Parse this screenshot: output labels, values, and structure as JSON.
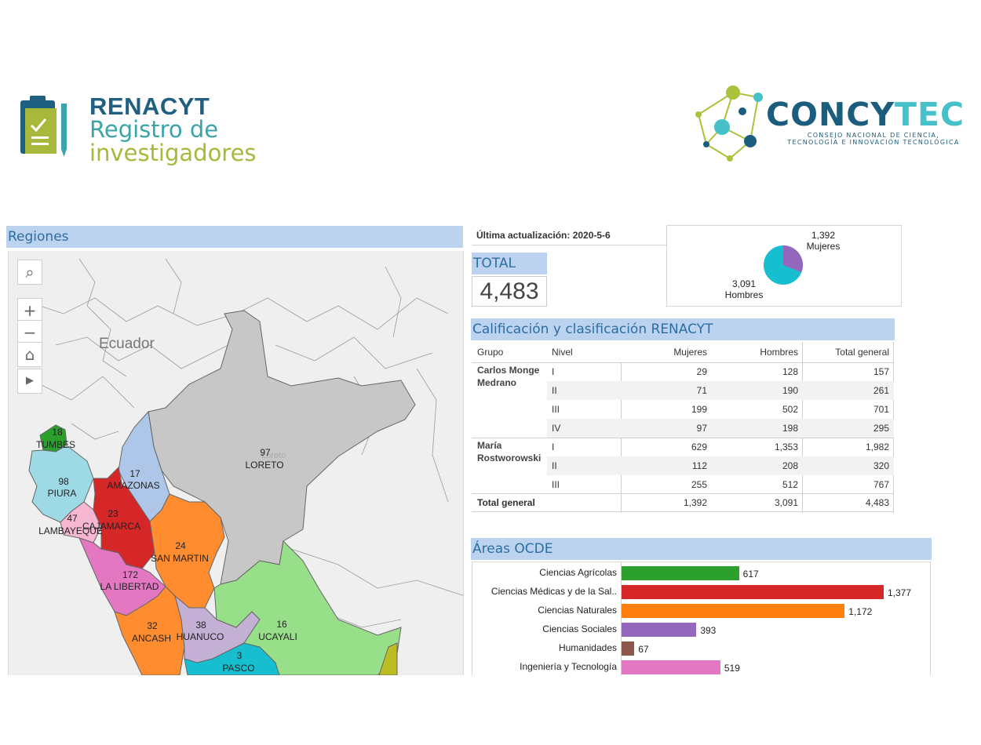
{
  "header": {
    "renacyt": {
      "title": "RENACYT",
      "line1": "Registro de",
      "line2": "investigadores"
    },
    "concytec": {
      "word_dark": "CONCY",
      "word_light": "TEC",
      "tagline_1": "CONSEJO NACIONAL DE CIENCIA,",
      "tagline_2": "TECNOLOGÍA E INNOVACIÓN TECNOLÓGICA"
    }
  },
  "regions": {
    "title": "Regiones",
    "country_label": "Ecuador",
    "faint_label": "Loreto",
    "controls": {
      "search": "⌕",
      "zoom_in": "+",
      "zoom_out": "−",
      "home": "⌂",
      "play": "▶"
    },
    "items": [
      {
        "name": "TUMBES",
        "value": "18",
        "color": "#2ca02c"
      },
      {
        "name": "PIURA",
        "value": "98",
        "color": "#9edae5"
      },
      {
        "name": "LAMBAYEQUE",
        "value": "47",
        "color": "#f7b6d2"
      },
      {
        "name": "CAJAMARCA",
        "value": "23",
        "color": "#d62728"
      },
      {
        "name": "AMAZONAS",
        "value": "17",
        "color": "#aec7e8"
      },
      {
        "name": "LORETO",
        "value": "97",
        "color": "#c7c7c7"
      },
      {
        "name": "SAN MARTIN",
        "value": "24",
        "color": "#ff8c2f"
      },
      {
        "name": "LA LIBERTAD",
        "value": "172",
        "color": "#e377c2"
      },
      {
        "name": "ANCASH",
        "value": "32",
        "color": "#ff8c2f"
      },
      {
        "name": "HUANUCO",
        "value": "38",
        "color": "#c5b0d5"
      },
      {
        "name": "PASCO",
        "value": "3",
        "color": "#17becf"
      },
      {
        "name": "UCAYALI",
        "value": "16",
        "color": "#98df8a"
      }
    ]
  },
  "stats": {
    "update_text": "Última actualización: 2020-5-6",
    "total_label": "TOTAL",
    "total_value": "4,483",
    "pie": {
      "mujeres_value": "1,392",
      "mujeres_label": "Mujeres",
      "mujeres_color": "#9467bd",
      "mujeres_count": 1392,
      "hombres_value": "3,091",
      "hombres_label": "Hombres",
      "hombres_color": "#17becf",
      "hombres_count": 3091
    }
  },
  "table": {
    "title": "Calificación y clasificación RENACYT",
    "headers": {
      "grupo": "Grupo",
      "nivel": "Nivel",
      "mujeres": "Mujeres",
      "hombres": "Hombres",
      "total": "Total general"
    },
    "group1": {
      "name_l1": "Carlos Monge",
      "name_l2": "Medrano"
    },
    "group2": {
      "name_l1": "María",
      "name_l2": "Rostworowski"
    },
    "rows": [
      {
        "nivel": "I",
        "mujeres": "29",
        "hombres": "128",
        "total": "157"
      },
      {
        "nivel": "II",
        "mujeres": "71",
        "hombres": "190",
        "total": "261"
      },
      {
        "nivel": "III",
        "mujeres": "199",
        "hombres": "502",
        "total": "701"
      },
      {
        "nivel": "IV",
        "mujeres": "97",
        "hombres": "198",
        "total": "295"
      },
      {
        "nivel": "I",
        "mujeres": "629",
        "hombres": "1,353",
        "total": "1,982"
      },
      {
        "nivel": "II",
        "mujeres": "112",
        "hombres": "208",
        "total": "320"
      },
      {
        "nivel": "III",
        "mujeres": "255",
        "hombres": "512",
        "total": "767"
      }
    ],
    "total_row": {
      "label": "Total general",
      "mujeres": "1,392",
      "hombres": "3,091",
      "total": "4,483"
    }
  },
  "chart_data": {
    "type": "bar",
    "title": "Áreas OCDE",
    "categories": [
      "Ciencias Agrícolas",
      "Ciencias Médicas y de la Sal..",
      "Ciencias Naturales",
      "Ciencias Sociales",
      "Humanidades",
      "Ingeniería y Tecnología"
    ],
    "values": [
      617,
      1377,
      1172,
      393,
      67,
      519
    ],
    "value_labels": [
      "617",
      "1,377",
      "1,172",
      "393",
      "67",
      "519"
    ],
    "colors": [
      "#2ca02c",
      "#d62728",
      "#ff7f0e",
      "#9467bd",
      "#8c564b",
      "#e377c2"
    ],
    "xlim": [
      0,
      1377
    ]
  }
}
